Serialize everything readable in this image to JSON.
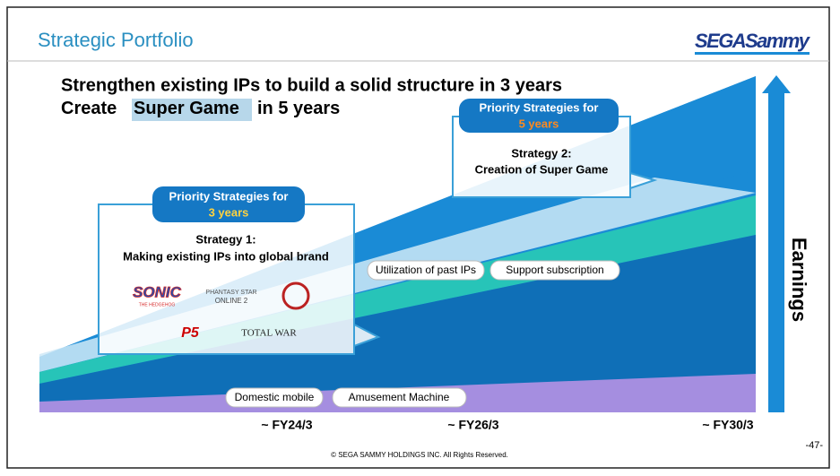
{
  "header": {
    "title": "Strategic Portfolio",
    "logo": "SEGASammy"
  },
  "headline": {
    "line1": "Strengthen existing IPs to build a solid structure in 3 years",
    "line2": [
      "Create",
      "Super Game",
      "in 5 years"
    ]
  },
  "callout_1": {
    "title": "Priority Strategies for",
    "period": "3 years",
    "strategy": "Strategy 1:",
    "description": "Making existing IPs into global brand",
    "logos": [
      "SONIC",
      "THE HEDGEHOG",
      "PHANTASY STAR",
      "ONLINE 2",
      "P5",
      "TOTAL WAR"
    ]
  },
  "callout_2": {
    "title": "Priority Strategies for",
    "period": "5 years",
    "strategy": "Strategy 2:",
    "description": "Creation of Super Game"
  },
  "pills": [
    "Utilization of past IPs",
    "Support subscription",
    "Domestic mobile",
    "Amusement Machine"
  ],
  "timeline": [
    "~ FY24/3",
    "~ FY26/3",
    "~ FY30/3"
  ],
  "axis_label": "Earnings",
  "footer": {
    "copyright": "© SEGA SAMMY HOLDINGS INC. All Rights Reserved.",
    "page": "-47-"
  }
}
